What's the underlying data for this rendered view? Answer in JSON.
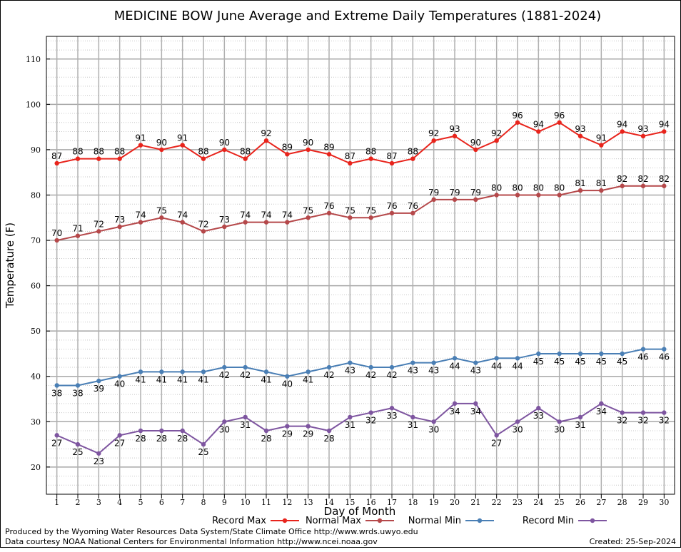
{
  "chart_data": {
    "type": "line",
    "title": "MEDICINE BOW June Average and Extreme Daily Temperatures (1881-2024)",
    "xlabel": "Day of Month",
    "ylabel": "Temperature (F)",
    "x": [
      1,
      2,
      3,
      4,
      5,
      6,
      7,
      8,
      9,
      10,
      11,
      12,
      13,
      14,
      15,
      16,
      17,
      18,
      19,
      20,
      21,
      22,
      23,
      24,
      25,
      26,
      27,
      28,
      29,
      30
    ],
    "xlim": [
      0.5,
      30.5
    ],
    "ylim": [
      14,
      115
    ],
    "yticks": [
      20,
      30,
      40,
      50,
      60,
      70,
      80,
      90,
      100,
      110
    ],
    "grid": true,
    "legend_position": "bottom",
    "series": [
      {
        "name": "Record Max",
        "color": "#e8241c",
        "label_pos": "above",
        "values": [
          87,
          88,
          88,
          88,
          91,
          90,
          91,
          88,
          90,
          88,
          92,
          89,
          90,
          89,
          87,
          88,
          87,
          88,
          92,
          93,
          90,
          92,
          96,
          94,
          96,
          93,
          91,
          94,
          93,
          94
        ]
      },
      {
        "name": "Normal Max",
        "color": "#b5484a",
        "label_pos": "above",
        "values": [
          70,
          71,
          72,
          73,
          74,
          75,
          74,
          72,
          73,
          74,
          74,
          74,
          75,
          76,
          75,
          75,
          76,
          76,
          79,
          79,
          79,
          80,
          80,
          80,
          80,
          81,
          81,
          82,
          82,
          82
        ]
      },
      {
        "name": "Normal Min",
        "color": "#4a7fb5",
        "label_pos": "below",
        "values": [
          38,
          38,
          39,
          40,
          41,
          41,
          41,
          41,
          42,
          42,
          41,
          40,
          41,
          42,
          43,
          42,
          42,
          43,
          43,
          44,
          43,
          44,
          44,
          45,
          45,
          45,
          45,
          45,
          46,
          46
        ]
      },
      {
        "name": "Record Min",
        "color": "#7e55a0",
        "label_pos": "below",
        "values": [
          27,
          25,
          23,
          27,
          28,
          28,
          28,
          25,
          30,
          31,
          28,
          29,
          29,
          28,
          31,
          32,
          33,
          31,
          30,
          34,
          34,
          27,
          30,
          33,
          30,
          31,
          34,
          32,
          32,
          32
        ]
      }
    ]
  },
  "footer": {
    "credit_line1": "Produced by the Wyoming Water Resources Data System/State Climate Office http://www.wrds.uwyo.edu",
    "credit_line2": "Data courtesy NOAA National Centers for Environmental Information http://www.ncei.noaa.gov",
    "created": "Created:  25-Sep-2024"
  }
}
